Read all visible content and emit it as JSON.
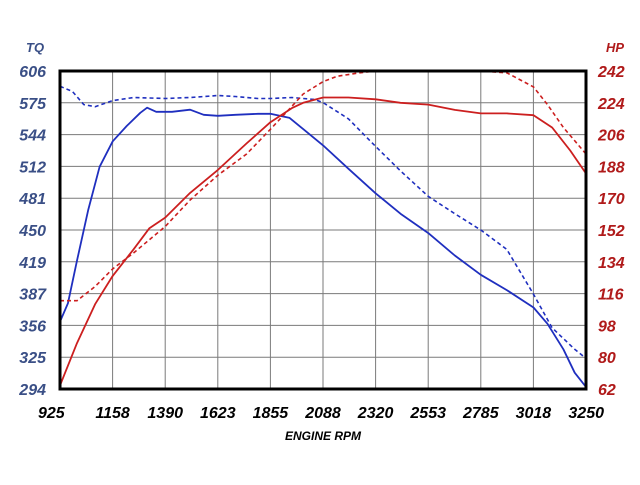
{
  "chart_data": {
    "type": "line",
    "title": "",
    "xlabel": "ENGINE RPM",
    "ylabel_left": "TQ",
    "ylabel_right": "HP",
    "x_ticks": [
      "925",
      "1158",
      "1390",
      "1623",
      "1855",
      "2088",
      "2320",
      "2553",
      "2785",
      "3018",
      "3250"
    ],
    "y_left_ticks": [
      "606",
      "575",
      "544",
      "512",
      "481",
      "450",
      "419",
      "387",
      "356",
      "325",
      "294"
    ],
    "y_right_ticks": [
      "242",
      "224",
      "206",
      "188",
      "170",
      "152",
      "134",
      "116",
      "98",
      "80",
      "62"
    ],
    "xlim": [
      925,
      3250
    ],
    "ylim_left": [
      294,
      606
    ],
    "ylim_right": [
      62,
      242
    ],
    "grid": true,
    "colors": {
      "tq": "#1f2fbf",
      "hp": "#cc1f1f",
      "tq_label": "#3a4f86",
      "hp_label": "#b01a1a",
      "frame": "#000000",
      "grid": "#7a7a7a"
    },
    "series": [
      {
        "axis": "left",
        "style": "solid",
        "color": "#1f2fbf",
        "x": [
          925,
          960,
          1000,
          1050,
          1100,
          1158,
          1220,
          1280,
          1310,
          1350,
          1420,
          1500,
          1560,
          1623,
          1700,
          1800,
          1855,
          1940,
          2000,
          2088,
          2200,
          2320,
          2430,
          2553,
          2670,
          2785,
          2900,
          3018,
          3080,
          3150,
          3200,
          3250
        ],
        "y": [
          360,
          378,
          420,
          470,
          512,
          537,
          552,
          565,
          570,
          566,
          566,
          568,
          563,
          562,
          563,
          564,
          564,
          560,
          549,
          533,
          510,
          486,
          466,
          447,
          425,
          406,
          391,
          374,
          358,
          333,
          310,
          296
        ]
      },
      {
        "axis": "left",
        "style": "dashed",
        "color": "#1f2fbf",
        "x": [
          925,
          980,
          1030,
          1080,
          1158,
          1250,
          1390,
          1500,
          1623,
          1700,
          1800,
          1855,
          1950,
          2050,
          2088,
          2200,
          2320,
          2430,
          2553,
          2670,
          2785,
          2900,
          3018,
          3100,
          3200,
          3250
        ],
        "y": [
          591,
          586,
          573,
          571,
          577,
          580,
          579,
          580,
          582,
          581,
          579,
          579,
          580,
          578,
          575,
          559,
          532,
          508,
          483,
          466,
          450,
          431,
          387,
          354,
          333,
          324
        ]
      },
      {
        "axis": "right",
        "style": "solid",
        "color": "#cc1f1f",
        "x": [
          925,
          1000,
          1080,
          1158,
          1250,
          1320,
          1390,
          1500,
          1623,
          1750,
          1855,
          1950,
          2000,
          2088,
          2200,
          2320,
          2430,
          2553,
          2670,
          2785,
          2900,
          3018,
          3100,
          3180,
          3250
        ],
        "y": [
          64,
          88,
          110,
          126,
          141,
          153,
          159,
          173,
          186,
          201,
          213,
          221,
          224,
          227,
          227,
          226,
          224,
          223,
          220,
          218,
          218,
          217,
          210,
          197,
          184
        ]
      },
      {
        "axis": "right",
        "style": "dashed",
        "color": "#cc1f1f",
        "x": [
          925,
          1000,
          1080,
          1158,
          1250,
          1390,
          1500,
          1623,
          1750,
          1855,
          1950,
          2000,
          2088,
          2150,
          2250,
          2320,
          2430,
          2553,
          2670,
          2785,
          2900,
          3018,
          3080,
          3150,
          3250
        ],
        "y": [
          112,
          112,
          120,
          130,
          139,
          154,
          169,
          183,
          195,
          209,
          222,
          229,
          236,
          239,
          241,
          242,
          242,
          242,
          242,
          242,
          241,
          233,
          223,
          210,
          195
        ]
      }
    ]
  }
}
